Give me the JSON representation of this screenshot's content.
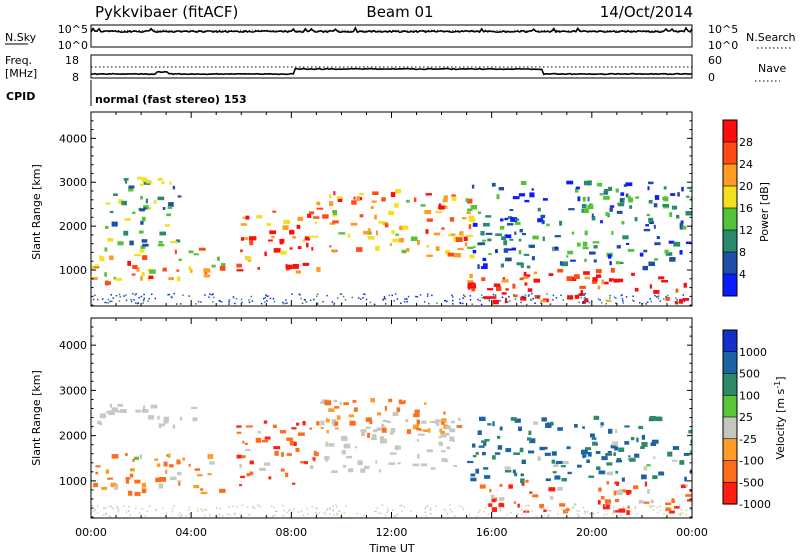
{
  "header": {
    "station": "Pykkvibaer (fitACF)",
    "beam": "Beam 01",
    "date": "14/Oct/2014"
  },
  "top_panels": {
    "nsky_label": "N.Sky",
    "nsky_ticks": [
      "10^5",
      "10^0"
    ],
    "nsearch_label": "N.Search",
    "nsearch_ticks": [
      "10^5",
      "10^0"
    ],
    "freq_label_1": "Freq.",
    "freq_label_2": "[MHz]",
    "freq_ticks": [
      "18",
      "8"
    ],
    "nave_label": "Nave",
    "nave_ticks": [
      "60",
      "0"
    ],
    "cpid_label": "CPID",
    "cpid_text": "normal (fast stereo) 153"
  },
  "colors": {
    "power_scale": [
      "#0a1bff",
      "#1f4ea8",
      "#2b8a6e",
      "#55c33a",
      "#f3e021",
      "#ff9a22",
      "#ff4a14",
      "#ff0d0d"
    ],
    "velocity_scale": [
      "#1430c8",
      "#1d62a4",
      "#2d8a66",
      "#59c637",
      "#c6c6c0",
      "#ff9c28",
      "#ff6d1a",
      "#ff1e12"
    ],
    "ground_scatter": "#c8c8c2"
  },
  "chart_data": [
    {
      "type": "heatmap",
      "panel": "power",
      "title": "",
      "ylabel": "Slant Range [km]",
      "xlabel": "",
      "xlim": [
        "00:00",
        "24:00"
      ],
      "ylim": [
        180,
        4600
      ],
      "x_ticks": [
        "00:00",
        "04:00",
        "08:00",
        "12:00",
        "16:00",
        "20:00",
        "00:00"
      ],
      "y_ticks": [
        1000,
        2000,
        3000,
        4000
      ],
      "colorbar": {
        "label": "Power [dB]",
        "ticks": [
          "28",
          "24",
          "20",
          "16",
          "12",
          "8",
          "4"
        ],
        "range": [
          0,
          30
        ]
      },
      "echo_regions": [
        {
          "t_start": 0.0,
          "t_end": 5.2,
          "r_min": 700,
          "r_max": 1500,
          "value": 20
        },
        {
          "t_start": 0.5,
          "t_end": 3.5,
          "r_min": 1500,
          "r_max": 3100,
          "value": 12
        },
        {
          "t_start": 5.8,
          "t_end": 9.0,
          "r_min": 900,
          "r_max": 2400,
          "value": 24
        },
        {
          "t_start": 8.8,
          "t_end": 15.3,
          "r_min": 1300,
          "r_max": 2800,
          "value": 20
        },
        {
          "t_start": 15.0,
          "t_end": 24.0,
          "r_min": 250,
          "r_max": 1000,
          "value": 28
        },
        {
          "t_start": 15.2,
          "t_end": 24.0,
          "r_min": 1000,
          "r_max": 3000,
          "value": 8
        }
      ]
    },
    {
      "type": "heatmap",
      "panel": "velocity",
      "title": "",
      "ylabel": "Slant Range [km]",
      "xlabel": "Time UT",
      "xlim": [
        "00:00",
        "24:00"
      ],
      "ylim": [
        180,
        4600
      ],
      "x_ticks": [
        "00:00",
        "04:00",
        "08:00",
        "12:00",
        "16:00",
        "20:00",
        "00:00"
      ],
      "y_ticks": [
        1000,
        2000,
        3000,
        4000
      ],
      "colorbar": {
        "label": "Velocity [m s^-1]",
        "ticks": [
          "1000",
          "500",
          "100",
          "25",
          "-25",
          "-100",
          "-500",
          "-1000"
        ],
        "range": [
          -1000,
          1000
        ]
      },
      "echo_regions": [
        {
          "t_start": 0.0,
          "t_end": 5.2,
          "r_min": 700,
          "r_max": 1600,
          "value": -100
        },
        {
          "t_start": 0.0,
          "t_end": 4.5,
          "r_min": 2200,
          "r_max": 2700,
          "value": 0
        },
        {
          "t_start": 5.8,
          "t_end": 9.0,
          "r_min": 900,
          "r_max": 2300,
          "value": -500
        },
        {
          "t_start": 9.0,
          "t_end": 14.5,
          "r_min": 1200,
          "r_max": 2400,
          "value": 0
        },
        {
          "t_start": 9.0,
          "t_end": 15.0,
          "r_min": 2000,
          "r_max": 2800,
          "value": -100
        },
        {
          "t_start": 15.5,
          "t_end": 24.0,
          "r_min": 300,
          "r_max": 1000,
          "value": -500
        },
        {
          "t_start": 15.0,
          "t_end": 24.0,
          "r_min": 1000,
          "r_max": 2400,
          "value": 100
        }
      ]
    }
  ]
}
